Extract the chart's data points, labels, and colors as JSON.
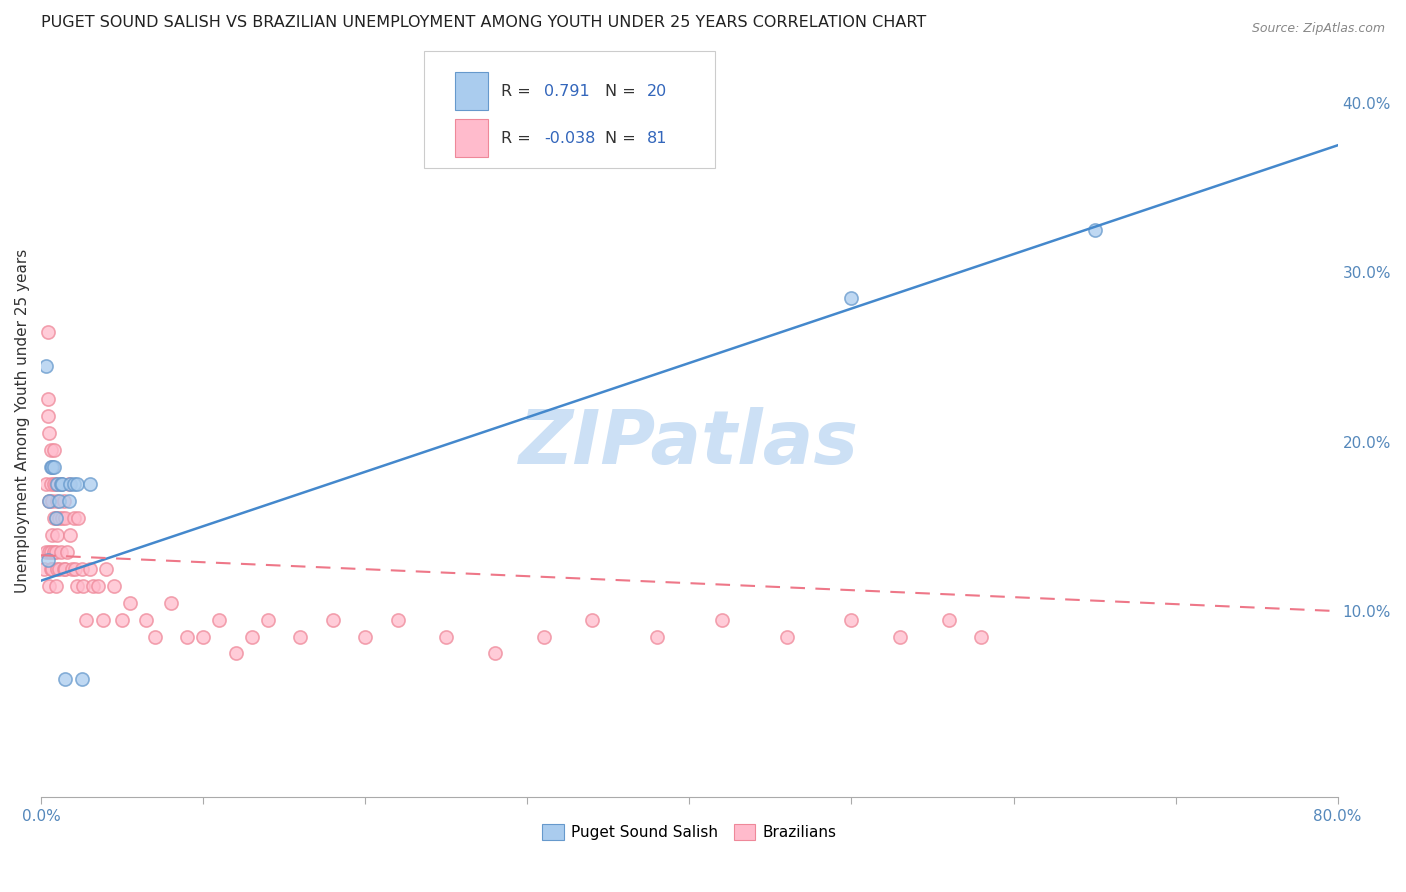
{
  "title": "PUGET SOUND SALISH VS BRAZILIAN UNEMPLOYMENT AMONG YOUTH UNDER 25 YEARS CORRELATION CHART",
  "source": "Source: ZipAtlas.com",
  "ylabel": "Unemployment Among Youth under 25 years",
  "xlim": [
    0,
    0.8
  ],
  "ylim": [
    -0.01,
    0.435
  ],
  "right_yticks": [
    0.1,
    0.2,
    0.3,
    0.4
  ],
  "right_yticklabels": [
    "10.0%",
    "20.0%",
    "30.0%",
    "40.0%"
  ],
  "blue_R": "0.791",
  "blue_N": "20",
  "pink_R": "-0.038",
  "pink_N": "81",
  "blue_fill_color": "#aaccee",
  "blue_edge_color": "#6699cc",
  "pink_fill_color": "#ffbbcc",
  "pink_edge_color": "#ee8899",
  "blue_line_color": "#4488cc",
  "pink_line_color": "#ee7788",
  "legend_text_color": "#3366bb",
  "legend_label_color": "#333333",
  "watermark_color": "#cce0f5",
  "watermark": "ZIPatlas",
  "legend_label_blue": "Puget Sound Salish",
  "legend_label_pink": "Brazilians",
  "blue_scatter_x": [
    0.003,
    0.004,
    0.005,
    0.006,
    0.007,
    0.008,
    0.009,
    0.01,
    0.011,
    0.012,
    0.013,
    0.015,
    0.017,
    0.018,
    0.02,
    0.022,
    0.025,
    0.03,
    0.5,
    0.65
  ],
  "blue_scatter_y": [
    0.245,
    0.13,
    0.165,
    0.185,
    0.185,
    0.185,
    0.155,
    0.175,
    0.165,
    0.175,
    0.175,
    0.06,
    0.165,
    0.175,
    0.175,
    0.175,
    0.06,
    0.175,
    0.285,
    0.325
  ],
  "pink_scatter_x": [
    0.002,
    0.003,
    0.003,
    0.004,
    0.004,
    0.004,
    0.005,
    0.005,
    0.005,
    0.005,
    0.006,
    0.006,
    0.006,
    0.006,
    0.007,
    0.007,
    0.007,
    0.007,
    0.008,
    0.008,
    0.008,
    0.008,
    0.009,
    0.009,
    0.009,
    0.009,
    0.01,
    0.01,
    0.01,
    0.011,
    0.011,
    0.012,
    0.012,
    0.013,
    0.014,
    0.014,
    0.015,
    0.015,
    0.016,
    0.017,
    0.018,
    0.019,
    0.02,
    0.021,
    0.022,
    0.023,
    0.025,
    0.026,
    0.028,
    0.03,
    0.032,
    0.035,
    0.038,
    0.04,
    0.045,
    0.05,
    0.055,
    0.065,
    0.07,
    0.08,
    0.09,
    0.1,
    0.11,
    0.12,
    0.13,
    0.14,
    0.16,
    0.18,
    0.2,
    0.22,
    0.25,
    0.28,
    0.31,
    0.34,
    0.38,
    0.42,
    0.46,
    0.5,
    0.53,
    0.56,
    0.58
  ],
  "pink_scatter_y": [
    0.125,
    0.135,
    0.175,
    0.215,
    0.225,
    0.265,
    0.115,
    0.135,
    0.165,
    0.205,
    0.125,
    0.135,
    0.175,
    0.195,
    0.125,
    0.145,
    0.165,
    0.185,
    0.135,
    0.155,
    0.175,
    0.195,
    0.115,
    0.135,
    0.155,
    0.175,
    0.125,
    0.145,
    0.165,
    0.125,
    0.155,
    0.135,
    0.175,
    0.155,
    0.125,
    0.165,
    0.125,
    0.155,
    0.135,
    0.175,
    0.145,
    0.125,
    0.155,
    0.125,
    0.115,
    0.155,
    0.125,
    0.115,
    0.095,
    0.125,
    0.115,
    0.115,
    0.095,
    0.125,
    0.115,
    0.095,
    0.105,
    0.095,
    0.085,
    0.105,
    0.085,
    0.085,
    0.095,
    0.075,
    0.085,
    0.095,
    0.085,
    0.095,
    0.085,
    0.095,
    0.085,
    0.075,
    0.085,
    0.095,
    0.085,
    0.095,
    0.085,
    0.095,
    0.085,
    0.095,
    0.085
  ],
  "blue_line_x0": 0.0,
  "blue_line_x1": 0.8,
  "blue_line_y0": 0.118,
  "blue_line_y1": 0.375,
  "pink_line_x0": 0.0,
  "pink_line_x1": 0.8,
  "pink_line_y0": 0.133,
  "pink_line_y1": 0.1,
  "grid_color": "#cccccc",
  "background_color": "#ffffff",
  "axis_color": "#5588bb",
  "tick_color": "#aaaaaa"
}
